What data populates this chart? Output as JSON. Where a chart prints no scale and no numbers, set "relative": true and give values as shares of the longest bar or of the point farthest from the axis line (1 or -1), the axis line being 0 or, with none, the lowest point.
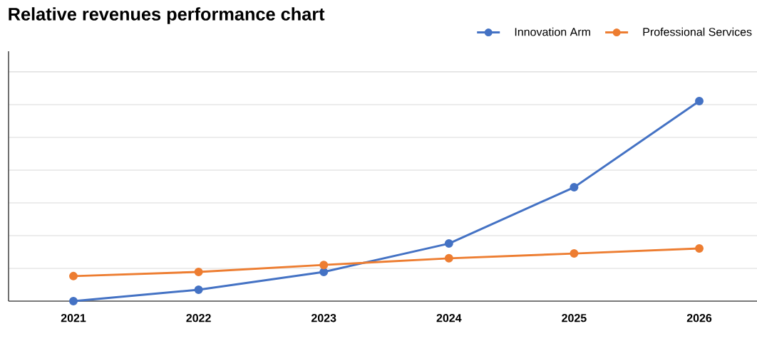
{
  "chart_data": {
    "type": "line",
    "title": "Relative revenues performance chart",
    "relative": true,
    "categories": [
      "2021",
      "2022",
      "2023",
      "2024",
      "2025",
      "2026"
    ],
    "series": [
      {
        "name": "Innovation Arm",
        "color": "#4472c4",
        "values": [
          0,
          0.057,
          0.146,
          0.288,
          0.569,
          1
        ]
      },
      {
        "name": "Professional Services",
        "color": "#ed7d31",
        "values": [
          0.125,
          0.146,
          0.181,
          0.214,
          0.238,
          0.263
        ]
      }
    ],
    "grid": "y",
    "legend": "top right",
    "marker": "circle",
    "line_style": "solid"
  }
}
